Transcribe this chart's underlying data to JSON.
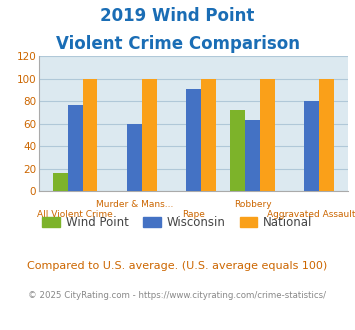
{
  "title_line1": "2019 Wind Point",
  "title_line2": "Violent Crime Comparison",
  "categories": [
    "All Violent Crime",
    "Murder & Mans...",
    "Rape",
    "Robbery",
    "Aggravated Assault"
  ],
  "upper_labels": {
    "1": "Murder & Mans...",
    "3": "Robbery"
  },
  "lower_labels": {
    "0": "All Violent Crime",
    "2": "Rape",
    "4": "Aggravated Assault"
  },
  "wind_point": [
    16,
    0,
    0,
    72,
    0
  ],
  "wisconsin": [
    77,
    60,
    91,
    63,
    80
  ],
  "national": [
    100,
    100,
    100,
    100,
    100
  ],
  "wind_point_color": "#7db32a",
  "wisconsin_color": "#4472c4",
  "national_color": "#faa019",
  "ylim": [
    0,
    120
  ],
  "yticks": [
    0,
    20,
    40,
    60,
    80,
    100,
    120
  ],
  "plot_bg": "#dce9f0",
  "title_color": "#1a6db5",
  "footer_text": "Compared to U.S. average. (U.S. average equals 100)",
  "footer_color": "#cc6600",
  "copyright_text": "© 2025 CityRating.com - https://www.cityrating.com/crime-statistics/",
  "copyright_color": "#888888",
  "legend_labels": [
    "Wind Point",
    "Wisconsin",
    "National"
  ],
  "bar_width": 0.25,
  "grid_color": "#b0c8d8",
  "tick_color": "#cc6600",
  "axis_label_color": "#cc6600"
}
